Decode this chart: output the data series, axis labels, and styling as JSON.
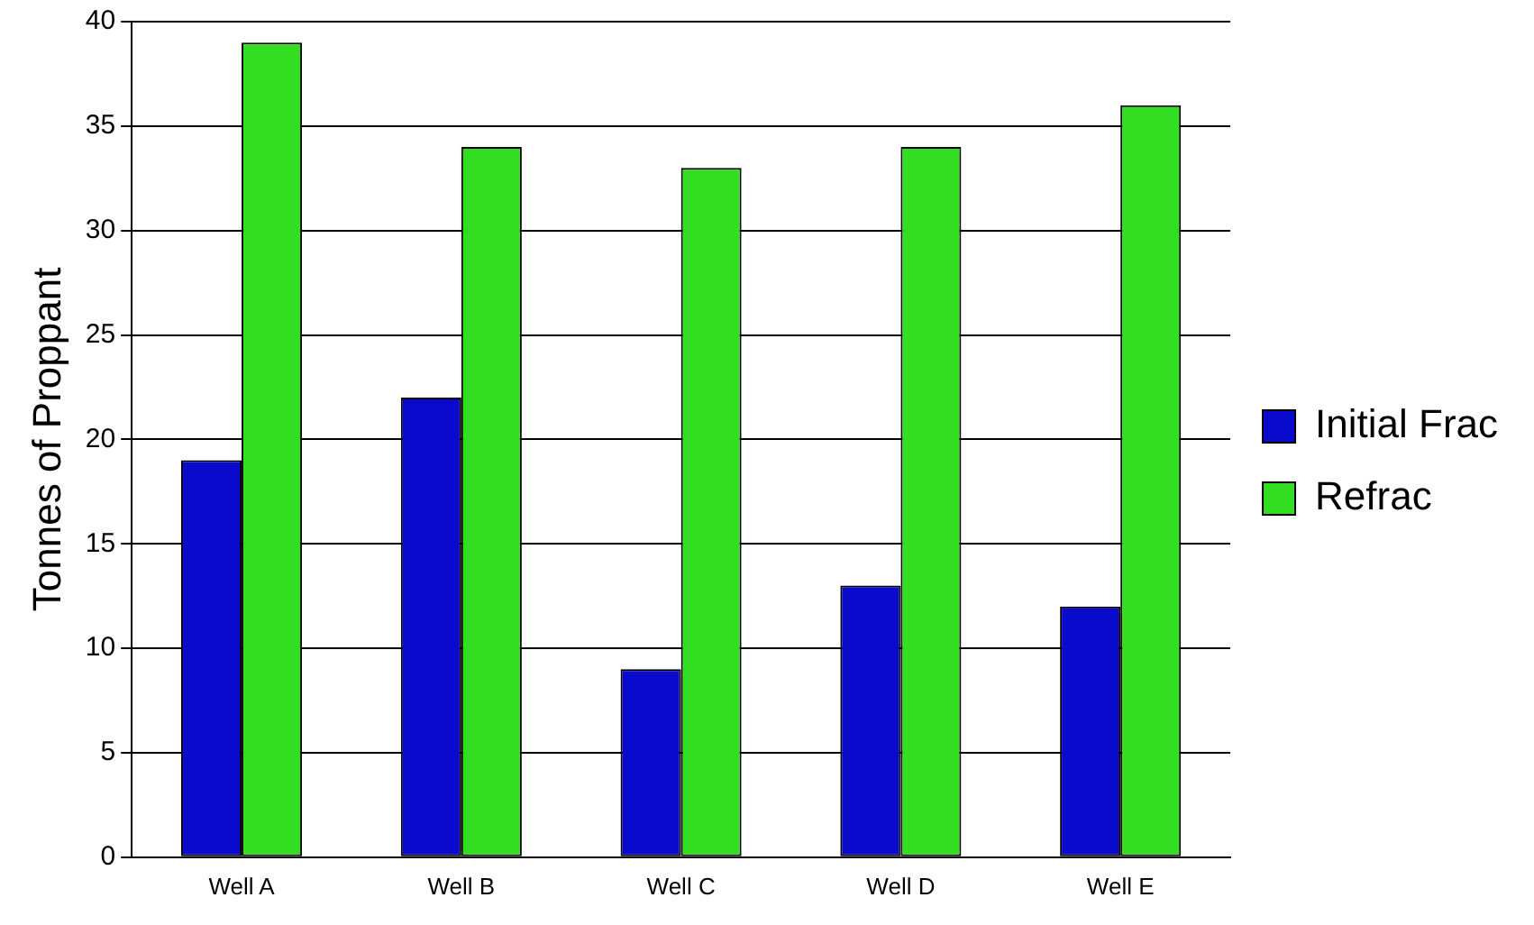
{
  "chart_data": {
    "type": "bar",
    "ylabel": "Tonnes of Proppant",
    "categories": [
      "Well A",
      "Well B",
      "Well C",
      "Well D",
      "Well E"
    ],
    "series": [
      {
        "name": "Initial Frac",
        "color": "#0a0acc",
        "values": [
          19,
          22,
          9,
          13,
          12
        ]
      },
      {
        "name": "Refrac",
        "color": "#33dd22",
        "values": [
          39,
          34,
          33,
          34,
          36
        ]
      }
    ],
    "ylim": [
      0,
      40
    ],
    "yticks": [
      0,
      5,
      10,
      15,
      20,
      25,
      30,
      35,
      40
    ],
    "grid": "y",
    "legend": "right"
  }
}
